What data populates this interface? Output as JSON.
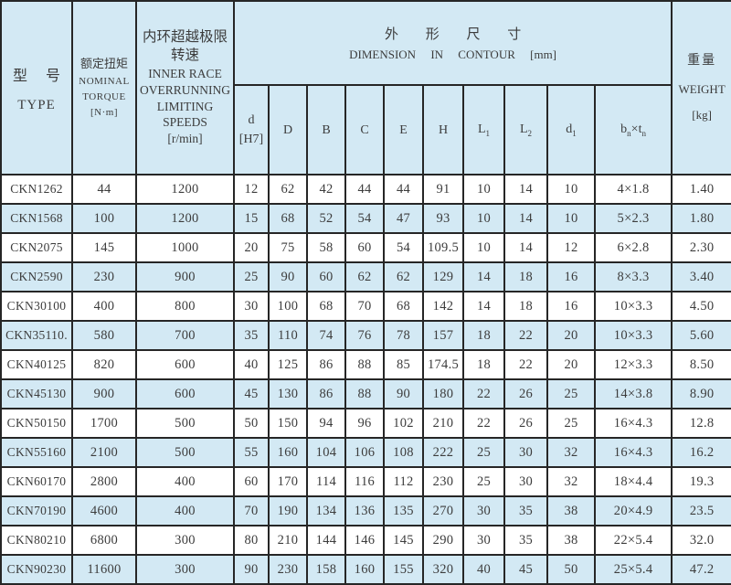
{
  "colors": {
    "page_bg": "#ffffff",
    "header_bg": "#d3e9f4",
    "row_alt": "#d3e9f4",
    "border": "#262626",
    "text": "#3c3c3c"
  },
  "header": {
    "type": {
      "zh": "型 号",
      "en": "TYPE"
    },
    "torque": {
      "lines": [
        "额定扭矩",
        "NOMINAL",
        "TORQUE",
        "[N·m]"
      ]
    },
    "speed": {
      "lines": [
        "内环超越极限转速",
        "INNER RACE",
        "OVERRUNNING",
        "LIMITING SPEEDS",
        "[r/min]"
      ]
    },
    "dimension": {
      "zh": "外 形 尺 寸",
      "en": "DIMENSION IN CONTOUR [mm]"
    },
    "weight": {
      "lines": [
        "重量",
        "WEIGHT",
        "[kg]"
      ]
    },
    "dim_headers": [
      {
        "name": "d-h7",
        "label": "d|[H7]"
      },
      {
        "name": "D",
        "label": "D"
      },
      {
        "name": "B",
        "label": "B"
      },
      {
        "name": "C",
        "label": "C"
      },
      {
        "name": "E",
        "label": "E"
      },
      {
        "name": "H",
        "label": "H"
      },
      {
        "name": "L1",
        "label": "L_1"
      },
      {
        "name": "L2",
        "label": "L_2"
      },
      {
        "name": "d1",
        "label": "d_1"
      },
      {
        "name": "bn-tn",
        "label": "b_n×t_n"
      }
    ]
  },
  "rows": [
    [
      "CKN1262",
      "44",
      "1200",
      "12",
      "62",
      "42",
      "44",
      "44",
      "91",
      "10",
      "14",
      "10",
      "4×1.8",
      "1.40"
    ],
    [
      "CKN1568",
      "100",
      "1200",
      "15",
      "68",
      "52",
      "54",
      "47",
      "93",
      "10",
      "14",
      "10",
      "5×2.3",
      "1.80"
    ],
    [
      "CKN2075",
      "145",
      "1000",
      "20",
      "75",
      "58",
      "60",
      "54",
      "109.5",
      "10",
      "14",
      "12",
      "6×2.8",
      "2.30"
    ],
    [
      "CKN2590",
      "230",
      "900",
      "25",
      "90",
      "60",
      "62",
      "62",
      "129",
      "14",
      "18",
      "16",
      "8×3.3",
      "3.40"
    ],
    [
      "CKN30100",
      "400",
      "800",
      "30",
      "100",
      "68",
      "70",
      "68",
      "142",
      "14",
      "18",
      "16",
      "10×3.3",
      "4.50"
    ],
    [
      "CKN35110.",
      "580",
      "700",
      "35",
      "110",
      "74",
      "76",
      "78",
      "157",
      "18",
      "22",
      "20",
      "10×3.3",
      "5.60"
    ],
    [
      "CKN40125",
      "820",
      "600",
      "40",
      "125",
      "86",
      "88",
      "85",
      "174.5",
      "18",
      "22",
      "20",
      "12×3.3",
      "8.50"
    ],
    [
      "CKN45130",
      "900",
      "600",
      "45",
      "130",
      "86",
      "88",
      "90",
      "180",
      "22",
      "26",
      "25",
      "14×3.8",
      "8.90"
    ],
    [
      "CKN50150",
      "1700",
      "500",
      "50",
      "150",
      "94",
      "96",
      "102",
      "210",
      "22",
      "26",
      "25",
      "16×4.3",
      "12.8"
    ],
    [
      "CKN55160",
      "2100",
      "500",
      "55",
      "160",
      "104",
      "106",
      "108",
      "222",
      "25",
      "30",
      "32",
      "16×4.3",
      "16.2"
    ],
    [
      "CKN60170",
      "2800",
      "400",
      "60",
      "170",
      "114",
      "116",
      "112",
      "230",
      "25",
      "30",
      "32",
      "18×4.4",
      "19.3"
    ],
    [
      "CKN70190",
      "4600",
      "400",
      "70",
      "190",
      "134",
      "136",
      "135",
      "270",
      "30",
      "35",
      "38",
      "20×4.9",
      "23.5"
    ],
    [
      "CKN80210",
      "6800",
      "300",
      "80",
      "210",
      "144",
      "146",
      "145",
      "290",
      "30",
      "35",
      "38",
      "22×5.4",
      "32.0"
    ],
    [
      "CKN90230",
      "11600",
      "300",
      "90",
      "230",
      "158",
      "160",
      "155",
      "320",
      "40",
      "45",
      "50",
      "25×5.4",
      "47.2"
    ]
  ]
}
